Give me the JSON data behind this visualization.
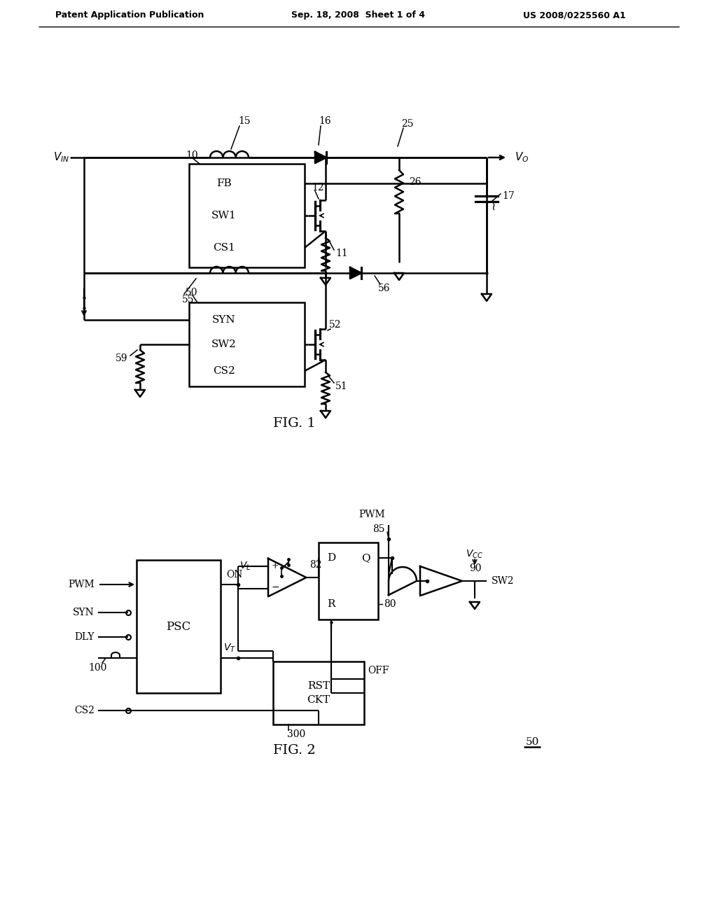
{
  "bg_color": "#ffffff",
  "header_left": "Patent Application Publication",
  "header_mid": "Sep. 18, 2008  Sheet 1 of 4",
  "header_right": "US 2008/0225560 A1",
  "fig1_label": "FIG. 1",
  "fig2_label": "FIG. 2",
  "fig2_ref": "50"
}
